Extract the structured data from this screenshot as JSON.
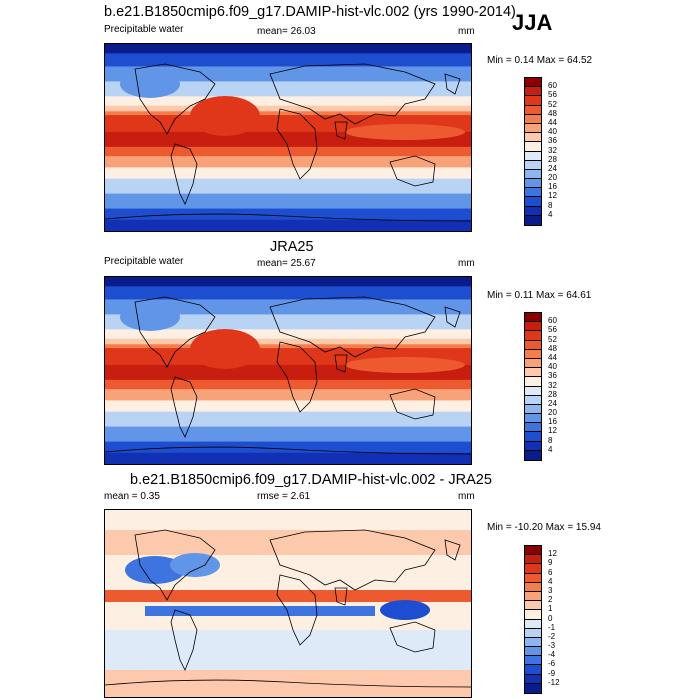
{
  "season": "JJA",
  "panels": [
    {
      "title": "b.e21.B1850cmip6.f09_g17.DAMIP-hist-vlc.002 (yrs 1990-2014)",
      "variable": "Precipitable water",
      "stat1": "mean=  26.03",
      "stat2": "",
      "units": "mm",
      "minmax": "Min =   0.14 Max =  64.52",
      "levels": [
        "60",
        "56",
        "52",
        "48",
        "44",
        "40",
        "36",
        "32",
        "28",
        "24",
        "20",
        "16",
        "12",
        "8",
        "4"
      ],
      "colors": [
        "#8b0000",
        "#c81e0f",
        "#e0361a",
        "#ee5a2f",
        "#f47d4c",
        "#f8a27a",
        "#fcc9ac",
        "#fdf0e2",
        "#dfeaf8",
        "#b9d3f5",
        "#8db5ee",
        "#6195e8",
        "#3d74e0",
        "#1e4ed0",
        "#1230b4",
        "#0a1b8c"
      ]
    },
    {
      "title": "JRA25",
      "variable": "Precipitable water",
      "stat1": "mean=  25.67",
      "stat2": "",
      "units": "mm",
      "minmax": "Min =   0.11 Max =  64.61",
      "levels": [
        "60",
        "56",
        "52",
        "48",
        "44",
        "40",
        "36",
        "32",
        "28",
        "24",
        "20",
        "16",
        "12",
        "8",
        "4"
      ],
      "colors": [
        "#8b0000",
        "#c81e0f",
        "#e0361a",
        "#ee5a2f",
        "#f47d4c",
        "#f8a27a",
        "#fcc9ac",
        "#fdf0e2",
        "#dfeaf8",
        "#b9d3f5",
        "#8db5ee",
        "#6195e8",
        "#3d74e0",
        "#1e4ed0",
        "#1230b4",
        "#0a1b8c"
      ]
    },
    {
      "title": "b.e21.B1850cmip6.f09_g17.DAMIP-hist-vlc.002 - JRA25",
      "variable": "",
      "stat1": "mean =   0.35",
      "stat2": "rmse =   2.61",
      "units": "mm",
      "minmax": "Min = -10.20 Max =  15.94",
      "levels": [
        "12",
        "9",
        "6",
        "4",
        "3",
        "2",
        "1",
        "0",
        "-1",
        "-2",
        "-3",
        "-4",
        "-6",
        "-9",
        "-12"
      ],
      "colors": [
        "#8b0000",
        "#c81e0f",
        "#e0361a",
        "#ee5a2f",
        "#f47d4c",
        "#f8a27a",
        "#fcc9ac",
        "#fdf0e2",
        "#dfeaf8",
        "#b9d3f5",
        "#8db5ee",
        "#6195e8",
        "#3d74e0",
        "#1e4ed0",
        "#1230b4",
        "#0a1b8c"
      ]
    }
  ]
}
